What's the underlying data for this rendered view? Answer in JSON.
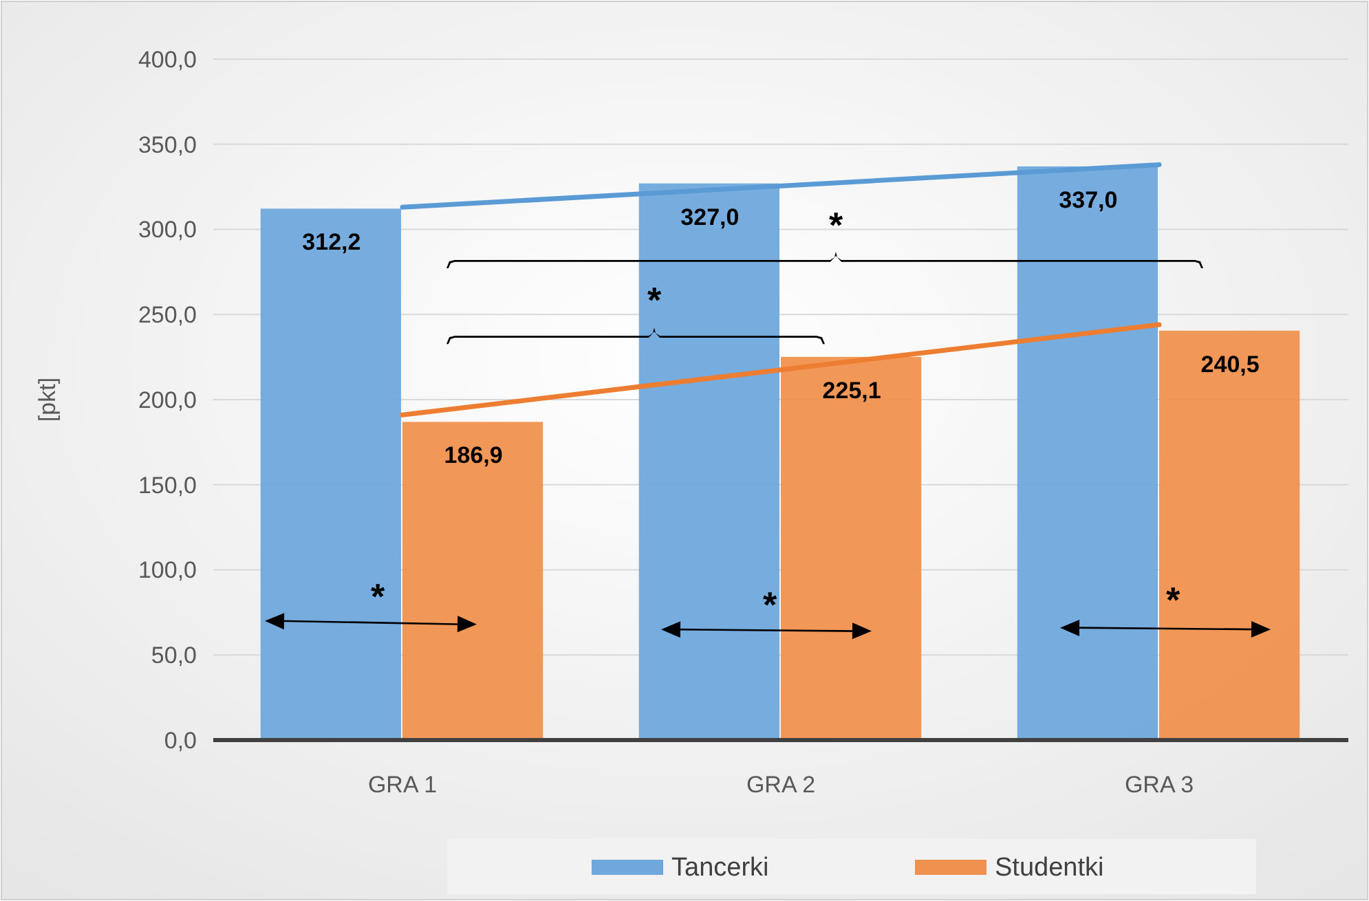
{
  "chart_data": {
    "type": "bar",
    "ylabel": "[pkt]",
    "categories": [
      "GRA 1",
      "GRA 2",
      "GRA 3"
    ],
    "series": [
      {
        "name": "Tancerki",
        "color": "#6fa8dc",
        "values": [
          312.2,
          327.0,
          337.0
        ],
        "value_labels": [
          "312,2",
          "327,0",
          "337,0"
        ]
      },
      {
        "name": "Studentki",
        "color": "#f0914f",
        "values": [
          186.9,
          225.1,
          240.5
        ],
        "value_labels": [
          "186,9",
          "225,1",
          "240,5"
        ]
      },
      {
        "type": "line",
        "color": "#5b9bd5",
        "x": [
          "GRA 1",
          "GRA 3"
        ],
        "values": [
          313,
          338
        ]
      },
      {
        "type": "line",
        "color": "#ed7d31",
        "x": [
          "GRA 1",
          "GRA 3"
        ],
        "values": [
          191,
          244
        ]
      }
    ],
    "ylim": [
      0,
      400
    ],
    "yticks": [
      {
        "value": 0,
        "label": "0,0"
      },
      {
        "value": 50,
        "label": "50,0"
      },
      {
        "value": 100,
        "label": "100,0"
      },
      {
        "value": 150,
        "label": "150,0"
      },
      {
        "value": 200,
        "label": "200,0"
      },
      {
        "value": 250,
        "label": "250,0"
      },
      {
        "value": 300,
        "label": "300,0"
      },
      {
        "value": 350,
        "label": "350,0"
      },
      {
        "value": 400,
        "label": "400,0"
      }
    ],
    "grid": "y",
    "legend": "bottom",
    "annotations": [
      "*",
      "*",
      "*",
      "*",
      "*"
    ]
  }
}
